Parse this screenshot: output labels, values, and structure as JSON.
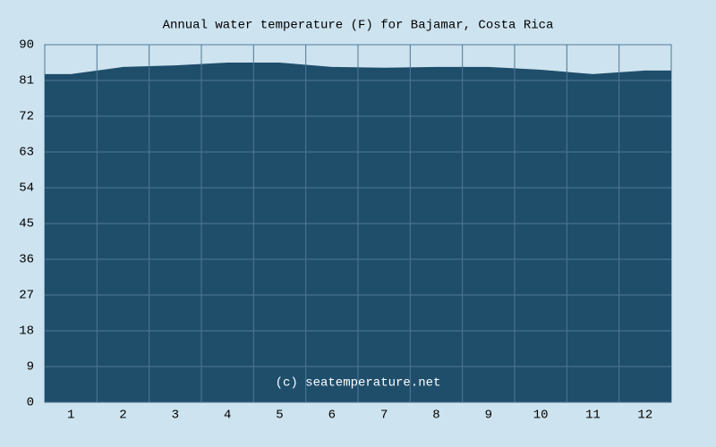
{
  "chart_data": {
    "type": "area",
    "title": "Annual water temperature (F) for Bajamar, Costa Rica",
    "categories": [
      "1",
      "2",
      "3",
      "4",
      "5",
      "6",
      "7",
      "8",
      "9",
      "10",
      "11",
      "12"
    ],
    "values": [
      82.6,
      84.4,
      84.8,
      85.5,
      85.5,
      84.4,
      84.2,
      84.4,
      84.4,
      83.7,
      82.6,
      83.5
    ],
    "color": "#1f4e6b",
    "ylim": [
      0,
      90
    ],
    "yticks": [
      0,
      9,
      18,
      27,
      36,
      45,
      54,
      63,
      72,
      81,
      90
    ],
    "grid": true,
    "watermark": "(c) seatemperature.net"
  }
}
